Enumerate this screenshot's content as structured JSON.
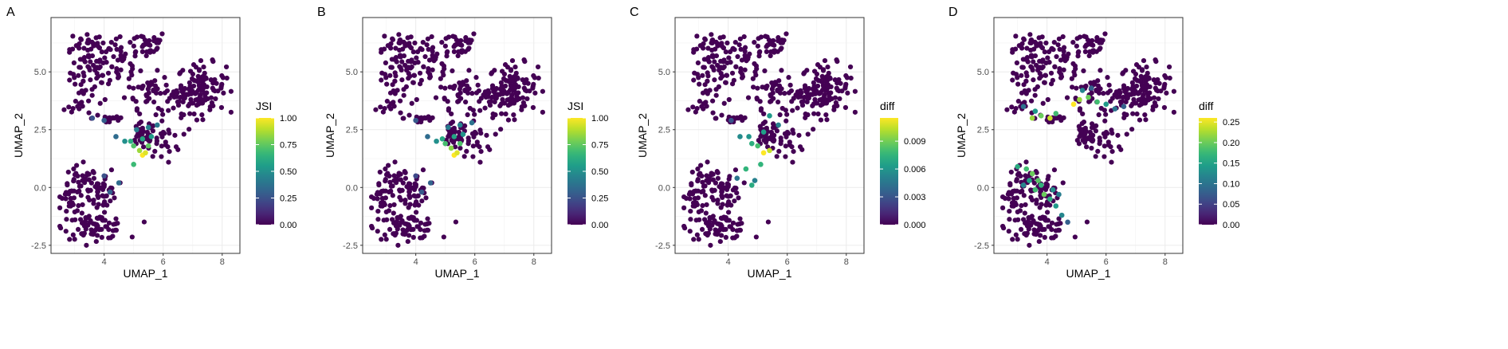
{
  "figure": {
    "shared_axes": {
      "xlabel": "UMAP_1",
      "ylabel": "UMAP_2",
      "xlim": [
        2.2,
        8.6
      ],
      "ylim": [
        -2.85,
        7.35
      ],
      "xticks": [
        4,
        6,
        8
      ],
      "yticks": [
        -2.5,
        0.0,
        2.5,
        5.0
      ]
    },
    "point_fill_background": "#440154",
    "grid": "on"
  },
  "chart_data": [
    {
      "type": "scatter",
      "panel_label": "A",
      "xlabel": "UMAP_1",
      "ylabel": "UMAP_2",
      "xticks": [
        "4",
        "6",
        "8"
      ],
      "yticks": [
        "-2.5",
        "0.0",
        "2.5",
        "5.0"
      ],
      "xlim": [
        2.2,
        8.6
      ],
      "ylim": [
        -2.85,
        7.35
      ],
      "legend": {
        "title": "JSI",
        "placement": "right",
        "ticks": [
          "0.00",
          "0.25",
          "0.50",
          "0.75",
          "1.00"
        ],
        "range": [
          0,
          1
        ],
        "colormap": "viridis"
      },
      "highlight_points": [
        {
          "x": 5.3,
          "y": 1.4,
          "v": 1.0
        },
        {
          "x": 5.4,
          "y": 1.5,
          "v": 0.95
        },
        {
          "x": 5.2,
          "y": 1.6,
          "v": 0.85
        },
        {
          "x": 5.5,
          "y": 1.8,
          "v": 0.75
        },
        {
          "x": 5.0,
          "y": 1.8,
          "v": 0.72
        },
        {
          "x": 4.9,
          "y": 2.0,
          "v": 0.62
        },
        {
          "x": 5.3,
          "y": 2.1,
          "v": 0.6
        },
        {
          "x": 5.6,
          "y": 2.2,
          "v": 0.55
        },
        {
          "x": 4.7,
          "y": 2.0,
          "v": 0.5
        },
        {
          "x": 5.5,
          "y": 2.6,
          "v": 0.45
        },
        {
          "x": 5.1,
          "y": 2.5,
          "v": 0.42
        },
        {
          "x": 5.8,
          "y": 2.7,
          "v": 0.4
        },
        {
          "x": 4.4,
          "y": 2.2,
          "v": 0.35
        },
        {
          "x": 4.0,
          "y": 2.9,
          "v": 0.3
        },
        {
          "x": 3.6,
          "y": 3.0,
          "v": 0.25
        },
        {
          "x": 5.0,
          "y": 1.0,
          "v": 0.68
        },
        {
          "x": 4.5,
          "y": 0.2,
          "v": 0.35
        },
        {
          "x": 4.2,
          "y": -0.2,
          "v": 0.3
        },
        {
          "x": 4.0,
          "y": 0.5,
          "v": 0.25
        }
      ]
    },
    {
      "type": "scatter",
      "panel_label": "B",
      "xlabel": "UMAP_1",
      "ylabel": "UMAP_2",
      "xticks": [
        "4",
        "6",
        "8"
      ],
      "yticks": [
        "-2.5",
        "0.0",
        "2.5",
        "5.0"
      ],
      "xlim": [
        2.2,
        8.6
      ],
      "ylim": [
        -2.85,
        7.35
      ],
      "legend": {
        "title": "JSI",
        "placement": "right",
        "ticks": [
          "0.00",
          "0.25",
          "0.50",
          "0.75",
          "1.00"
        ],
        "range": [
          0,
          1
        ],
        "colormap": "viridis"
      },
      "highlight_points": [
        {
          "x": 5.3,
          "y": 1.4,
          "v": 1.0
        },
        {
          "x": 5.4,
          "y": 1.5,
          "v": 0.95
        },
        {
          "x": 5.2,
          "y": 1.7,
          "v": 0.82
        },
        {
          "x": 5.5,
          "y": 1.9,
          "v": 0.72
        },
        {
          "x": 5.0,
          "y": 1.9,
          "v": 0.7
        },
        {
          "x": 4.9,
          "y": 2.1,
          "v": 0.6
        },
        {
          "x": 5.3,
          "y": 2.2,
          "v": 0.58
        },
        {
          "x": 5.6,
          "y": 2.3,
          "v": 0.52
        },
        {
          "x": 4.7,
          "y": 2.0,
          "v": 0.5
        },
        {
          "x": 5.5,
          "y": 2.7,
          "v": 0.45
        },
        {
          "x": 5.1,
          "y": 2.6,
          "v": 0.42
        },
        {
          "x": 5.9,
          "y": 2.8,
          "v": 0.38
        },
        {
          "x": 4.4,
          "y": 2.2,
          "v": 0.35
        },
        {
          "x": 4.0,
          "y": 2.9,
          "v": 0.28
        },
        {
          "x": 4.5,
          "y": 0.2,
          "v": 0.32
        },
        {
          "x": 4.2,
          "y": -0.2,
          "v": 0.28
        },
        {
          "x": 4.0,
          "y": 0.5,
          "v": 0.22
        }
      ]
    },
    {
      "type": "scatter",
      "panel_label": "C",
      "xlabel": "UMAP_1",
      "ylabel": "UMAP_2",
      "xticks": [
        "4",
        "6",
        "8"
      ],
      "yticks": [
        "-2.5",
        "0.0",
        "2.5",
        "5.0"
      ],
      "xlim": [
        2.2,
        8.6
      ],
      "ylim": [
        -2.85,
        7.35
      ],
      "legend": {
        "title": "diff",
        "placement": "right",
        "ticks": [
          "0.000",
          "0.003",
          "0.006",
          "0.009"
        ],
        "range": [
          0,
          0.0115
        ],
        "colormap": "viridis"
      },
      "highlight_points": [
        {
          "x": 5.2,
          "y": 1.5,
          "v": 0.0115
        },
        {
          "x": 5.4,
          "y": 1.6,
          "v": 0.0105
        },
        {
          "x": 5.0,
          "y": 1.8,
          "v": 0.008
        },
        {
          "x": 5.1,
          "y": 1.0,
          "v": 0.0075
        },
        {
          "x": 4.8,
          "y": 1.9,
          "v": 0.0072
        },
        {
          "x": 4.7,
          "y": 2.2,
          "v": 0.006
        },
        {
          "x": 5.2,
          "y": 2.4,
          "v": 0.0065
        },
        {
          "x": 5.4,
          "y": 3.1,
          "v": 0.0062
        },
        {
          "x": 5.7,
          "y": 2.7,
          "v": 0.005
        },
        {
          "x": 4.4,
          "y": 2.2,
          "v": 0.0055
        },
        {
          "x": 4.6,
          "y": 0.8,
          "v": 0.0075
        },
        {
          "x": 4.8,
          "y": 0.1,
          "v": 0.007
        },
        {
          "x": 4.3,
          "y": 0.4,
          "v": 0.0045
        },
        {
          "x": 4.1,
          "y": 2.9,
          "v": 0.003
        },
        {
          "x": 4.9,
          "y": 0.3,
          "v": 0.005
        }
      ]
    },
    {
      "type": "scatter",
      "panel_label": "D",
      "xlabel": "UMAP_1",
      "ylabel": "UMAP_2",
      "xticks": [
        "4",
        "6",
        "8"
      ],
      "yticks": [
        "-2.5",
        "0.0",
        "2.5",
        "5.0"
      ],
      "xlim": [
        2.2,
        8.6
      ],
      "ylim": [
        -2.85,
        7.35
      ],
      "legend": {
        "title": "diff",
        "placement": "right",
        "ticks": [
          "0.00",
          "0.05",
          "0.10",
          "0.15",
          "0.20",
          "0.25"
        ],
        "range": [
          0,
          0.26
        ],
        "colormap": "viridis"
      },
      "highlight_points": [
        {
          "x": 4.9,
          "y": 3.6,
          "v": 0.26
        },
        {
          "x": 5.1,
          "y": 3.8,
          "v": 0.22
        },
        {
          "x": 5.4,
          "y": 3.9,
          "v": 0.2
        },
        {
          "x": 5.7,
          "y": 3.7,
          "v": 0.18
        },
        {
          "x": 6.0,
          "y": 3.6,
          "v": 0.14
        },
        {
          "x": 6.3,
          "y": 3.4,
          "v": 0.1
        },
        {
          "x": 6.6,
          "y": 3.5,
          "v": 0.08
        },
        {
          "x": 5.2,
          "y": 4.2,
          "v": 0.12
        },
        {
          "x": 5.5,
          "y": 4.3,
          "v": 0.08
        },
        {
          "x": 3.5,
          "y": 3.0,
          "v": 0.22
        },
        {
          "x": 3.8,
          "y": 3.1,
          "v": 0.2
        },
        {
          "x": 4.1,
          "y": 3.0,
          "v": 0.24
        },
        {
          "x": 4.3,
          "y": 3.2,
          "v": 0.18
        },
        {
          "x": 3.2,
          "y": 3.5,
          "v": 0.1
        },
        {
          "x": 3.6,
          "y": 3.3,
          "v": 0.14
        },
        {
          "x": 3.0,
          "y": 0.9,
          "v": 0.16
        },
        {
          "x": 3.3,
          "y": 0.8,
          "v": 0.18
        },
        {
          "x": 3.5,
          "y": 0.6,
          "v": 0.2
        },
        {
          "x": 3.7,
          "y": 0.3,
          "v": 0.19
        },
        {
          "x": 3.6,
          "y": -0.1,
          "v": 0.18
        },
        {
          "x": 3.9,
          "y": -0.3,
          "v": 0.2
        },
        {
          "x": 4.1,
          "y": -0.5,
          "v": 0.16
        },
        {
          "x": 4.3,
          "y": -0.8,
          "v": 0.14
        },
        {
          "x": 4.5,
          "y": -1.2,
          "v": 0.12
        },
        {
          "x": 4.7,
          "y": -1.5,
          "v": 0.08
        },
        {
          "x": 3.8,
          "y": 0.1,
          "v": 0.17
        },
        {
          "x": 3.4,
          "y": 0.3,
          "v": 0.15
        },
        {
          "x": 4.2,
          "y": -0.1,
          "v": 0.13
        },
        {
          "x": 3.2,
          "y": 0.1,
          "v": 0.12
        },
        {
          "x": 4.4,
          "y": -0.3,
          "v": 0.11
        }
      ]
    }
  ]
}
